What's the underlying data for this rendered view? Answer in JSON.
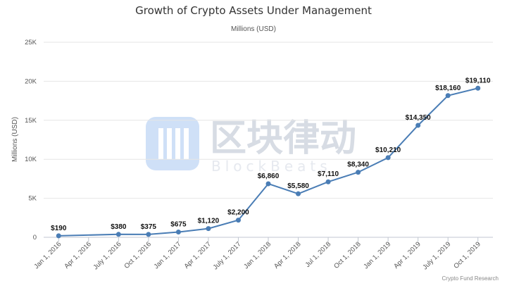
{
  "chart_data": {
    "type": "line",
    "title": "Growth of Crypto Assets Under Management",
    "subtitle": "Millions (USD)",
    "ylabel": "Millions (USD)",
    "xlabel": "",
    "ylim": [
      0,
      25000
    ],
    "yticks": [
      0,
      5000,
      10000,
      15000,
      20000,
      25000
    ],
    "ytick_labels": [
      "0",
      "5K",
      "10K",
      "15K",
      "20K",
      "25K"
    ],
    "grid": true,
    "line_color": "#4a7db5",
    "categories": [
      "Jan 1, 2016",
      "Apr 1, 2016",
      "July 1, 2016",
      "Oct 1, 2016",
      "Jan 1, 2017",
      "Apr 1, 2017",
      "July 1, 2017",
      "Jan 1, 2018",
      "Apr 1, 2018",
      "Jul 1, 2018",
      "Oct 1, 2018",
      "Jan 1, 2019",
      "Apr 1, 2019",
      "July 1, 2019",
      "Oct 1, 2019"
    ],
    "points": [
      {
        "x": "Jan 1, 2016",
        "y": 190,
        "label": "$190"
      },
      {
        "x": "July 1, 2016",
        "y": 380,
        "label": "$380"
      },
      {
        "x": "Oct 1, 2016",
        "y": 375,
        "label": "$375"
      },
      {
        "x": "Jan 1, 2017",
        "y": 675,
        "label": "$675"
      },
      {
        "x": "Apr 1, 2017",
        "y": 1120,
        "label": "$1,120"
      },
      {
        "x": "July 1, 2017",
        "y": 2200,
        "label": "$2,200"
      },
      {
        "x": "Jan 1, 2018",
        "y": 6860,
        "label": "$6,860"
      },
      {
        "x": "Apr 1, 2018",
        "y": 5580,
        "label": "$5,580"
      },
      {
        "x": "Jul 1, 2018",
        "y": 7110,
        "label": "$7,110"
      },
      {
        "x": "Oct 1, 2018",
        "y": 8340,
        "label": "$8,340"
      },
      {
        "x": "Jan 1, 2019",
        "y": 10210,
        "label": "$10,210"
      },
      {
        "x": "Apr 1, 2019",
        "y": 14350,
        "label": "$14,350"
      },
      {
        "x": "July 1, 2019",
        "y": 18160,
        "label": "$18,160"
      },
      {
        "x": "Oct 1, 2019",
        "y": 19110,
        "label": "$19,110"
      }
    ],
    "credit": "Crypto Fund Research"
  },
  "watermark": {
    "text_cn": "区块律动",
    "text_en": "BlockBeats",
    "color": "#d7dce4"
  }
}
